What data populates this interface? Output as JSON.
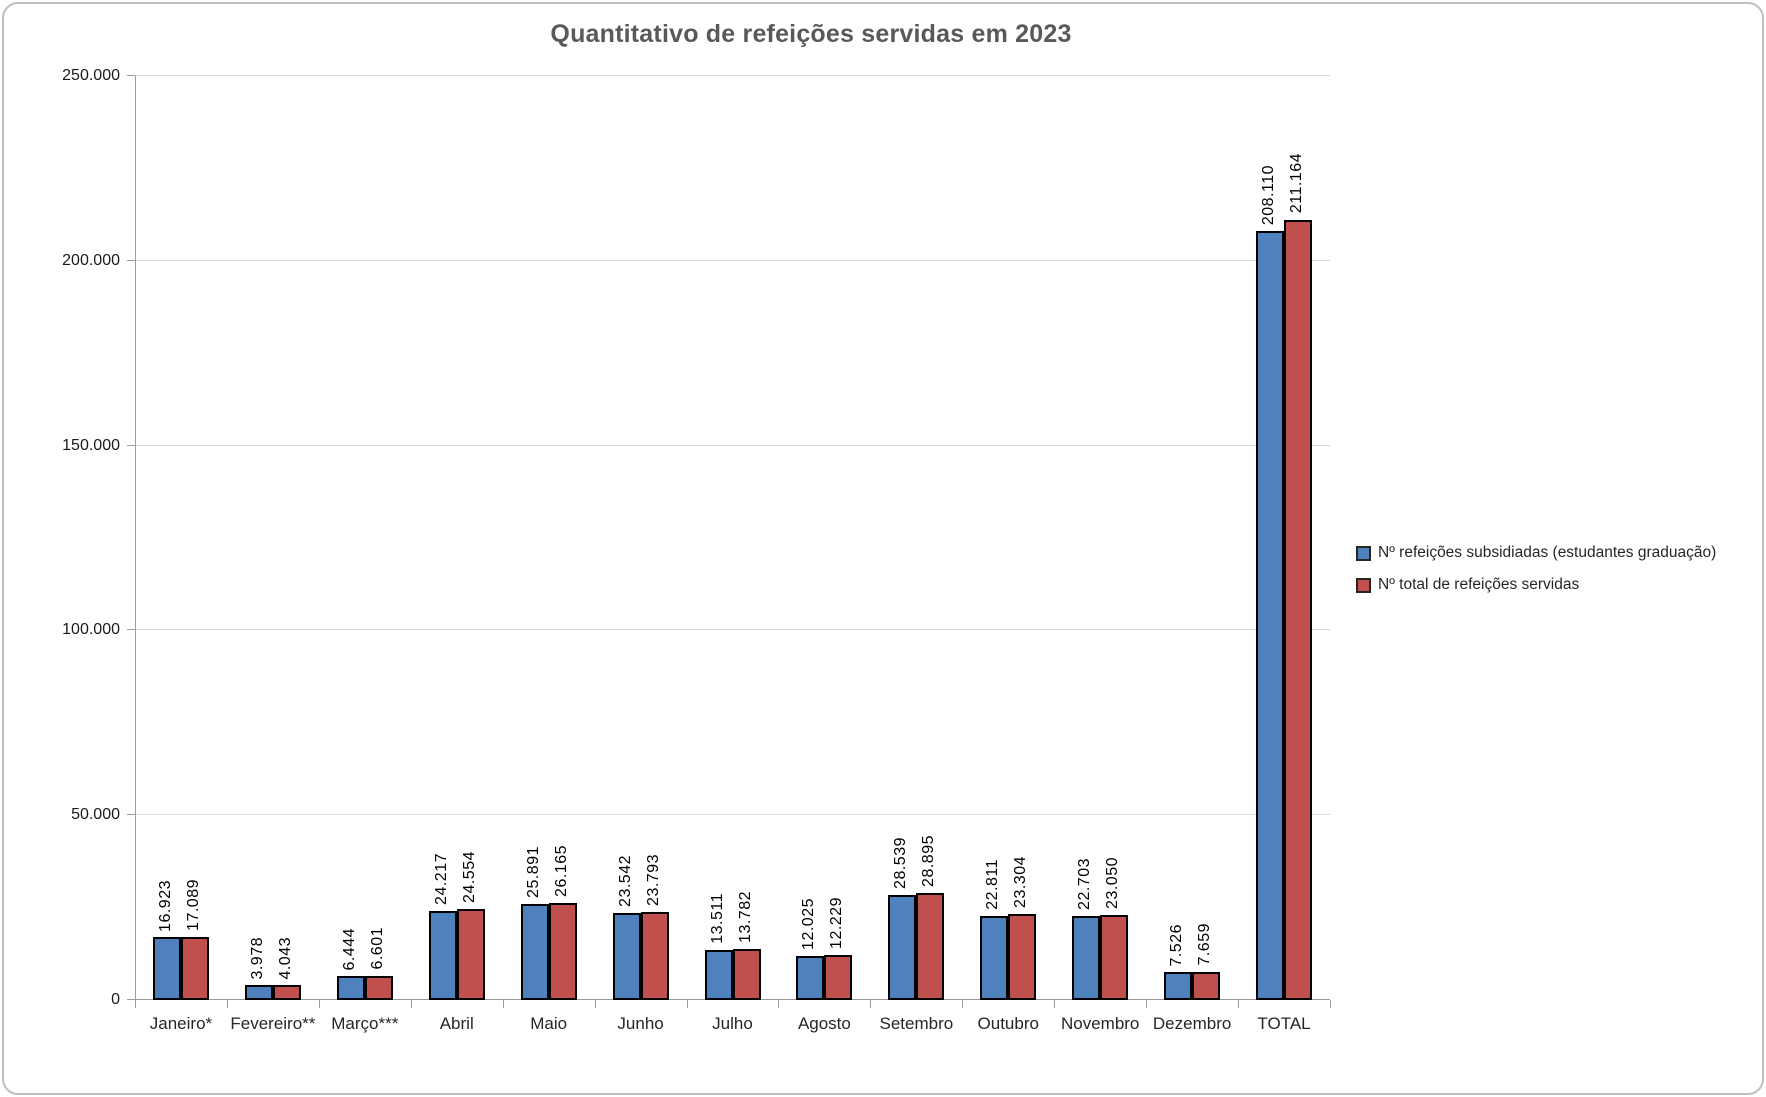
{
  "title": "Quantitativo de refeições servidas em 2023",
  "chart_data": {
    "type": "bar",
    "title": "Quantitativo de refeições servidas em 2023",
    "categories": [
      "Janeiro*",
      "Fevereiro**",
      "Março***",
      "Abril",
      "Maio",
      "Junho",
      "Julho",
      "Agosto",
      "Setembro",
      "Outubro",
      "Novembro",
      "Dezembro",
      "TOTAL"
    ],
    "series": [
      {
        "name": "Nº refeições subsidiadas (estudantes graduação)",
        "color": "#4F81BD",
        "values": [
          16923,
          3978,
          6444,
          24217,
          25891,
          23542,
          13511,
          12025,
          28539,
          22811,
          22703,
          7526,
          208110
        ],
        "labels": [
          "16.923",
          "3.978",
          "6.444",
          "24.217",
          "25.891",
          "23.542",
          "13.511",
          "12.025",
          "28.539",
          "22.811",
          "22.703",
          "7.526",
          "208.110"
        ]
      },
      {
        "name": "Nº total de refeições servidas",
        "color": "#C0504D",
        "values": [
          17089,
          4043,
          6601,
          24554,
          26165,
          23793,
          13782,
          12229,
          28895,
          23304,
          23050,
          7659,
          211164
        ],
        "labels": [
          "17.089",
          "4.043",
          "6.601",
          "24.554",
          "26.165",
          "23.793",
          "13.782",
          "12.229",
          "28.895",
          "23.304",
          "23.050",
          "7.659",
          "211.164"
        ]
      }
    ],
    "ylim": [
      0,
      250000
    ],
    "yticks": [
      {
        "value": 0,
        "label": "0"
      },
      {
        "value": 50000,
        "label": "50.000"
      },
      {
        "value": 100000,
        "label": "100.000"
      },
      {
        "value": 150000,
        "label": "150.000"
      },
      {
        "value": 200000,
        "label": "200.000"
      },
      {
        "value": 250000,
        "label": "250.000"
      }
    ],
    "grid": true,
    "legend_position": "right",
    "data_labels": "rotated-vertical",
    "bar_border_color": "#000000"
  },
  "colors": {
    "series1": "#4F81BD",
    "series2": "#C0504D",
    "gridline": "#D9D9D9",
    "axis": "#9C9C9C",
    "title": "#595959",
    "frame_border": "#BFBFBF"
  }
}
